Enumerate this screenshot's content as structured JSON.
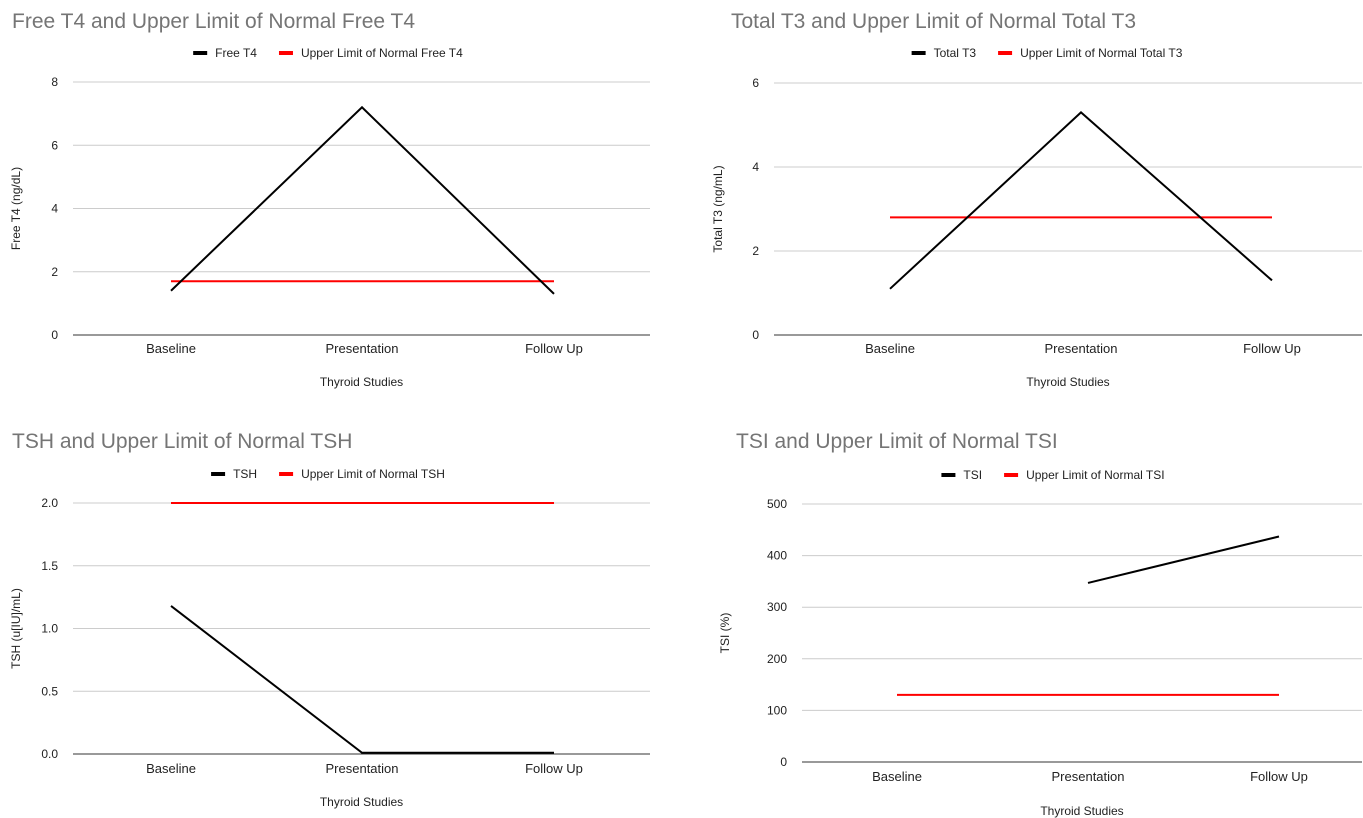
{
  "chart_data": [
    {
      "type": "line",
      "title": "Free T4 and Upper Limit of Normal Free T4",
      "xlabel": "Thyroid Studies",
      "ylabel": "Free T4 (ng/dL)",
      "categories": [
        "Baseline",
        "Presentation",
        "Follow Up"
      ],
      "ylim": [
        0,
        8
      ],
      "yticks": [
        "0",
        "2",
        "4",
        "6",
        "8"
      ],
      "grid": true,
      "legend_position": "top",
      "series": [
        {
          "name": "Free T4",
          "color": "#000000",
          "values": [
            1.4,
            7.2,
            1.3
          ]
        },
        {
          "name": "Upper Limit of Normal Free T4",
          "color": "#ff0000",
          "values": [
            1.7,
            1.7,
            1.7
          ]
        }
      ]
    },
    {
      "type": "line",
      "title": "Total T3 and Upper Limit of Normal Total T3",
      "xlabel": "Thyroid Studies",
      "ylabel": "Total T3 (ng/mL)",
      "categories": [
        "Baseline",
        "Presentation",
        "Follow Up"
      ],
      "ylim": [
        0,
        6
      ],
      "yticks": [
        "0",
        "2",
        "4",
        "6"
      ],
      "grid": true,
      "legend_position": "top",
      "series": [
        {
          "name": "Total T3",
          "color": "#000000",
          "values": [
            1.1,
            5.3,
            1.3
          ]
        },
        {
          "name": "Upper Limit of Normal Total T3",
          "color": "#ff0000",
          "values": [
            2.8,
            2.8,
            2.8
          ]
        }
      ]
    },
    {
      "type": "line",
      "title": "TSH and Upper Limit of Normal TSH",
      "xlabel": "Thyroid Studies",
      "ylabel": "TSH (u[IU]/mL)",
      "categories": [
        "Baseline",
        "Presentation",
        "Follow Up"
      ],
      "ylim": [
        0,
        2
      ],
      "yticks": [
        "0.0",
        "0.5",
        "1.0",
        "1.5",
        "2.0"
      ],
      "grid": true,
      "legend_position": "top",
      "series": [
        {
          "name": "TSH",
          "color": "#000000",
          "values": [
            1.18,
            0.01,
            0.01
          ]
        },
        {
          "name": "Upper Limit of Normal TSH",
          "color": "#ff0000",
          "values": [
            2.0,
            2.0,
            2.0
          ]
        }
      ]
    },
    {
      "type": "line",
      "title": "TSI and Upper Limit of Normal TSI",
      "xlabel": "Thyroid Studies",
      "ylabel": "TSI (%)",
      "categories": [
        "Baseline",
        "Presentation",
        "Follow Up"
      ],
      "ylim": [
        0,
        500
      ],
      "yticks": [
        "0",
        "100",
        "200",
        "300",
        "400",
        "500"
      ],
      "grid": true,
      "legend_position": "top",
      "series": [
        {
          "name": "TSI",
          "color": "#000000",
          "values": [
            null,
            347,
            437
          ]
        },
        {
          "name": "Upper Limit of Normal TSI",
          "color": "#ff0000",
          "values": [
            130,
            130,
            130
          ]
        }
      ]
    }
  ]
}
